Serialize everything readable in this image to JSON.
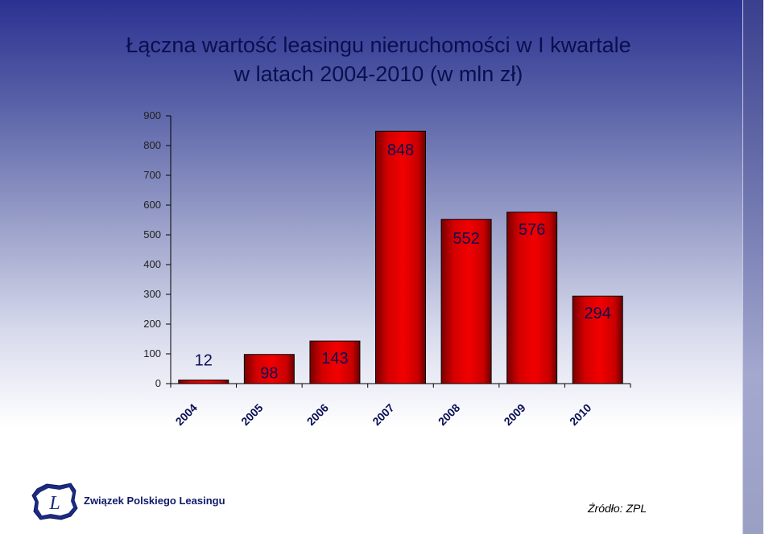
{
  "title_line1": "Łączna wartość leasingu nieruchomości w I kwartale",
  "title_line2": "w latach 2004-2010 (w mln zł)",
  "footer": {
    "organization": "Związek Polskiego Leasingu",
    "source": "Źródło: ZPL",
    "logo_letter": "L"
  },
  "colors": {
    "bar_fill": "#e00000",
    "bar_dark": "#6a0000",
    "title": "#0a0f4e"
  },
  "chart_data": {
    "type": "bar",
    "categories": [
      "2004",
      "2005",
      "2006",
      "2007",
      "2008",
      "2009",
      "2010"
    ],
    "values": [
      12,
      98,
      143,
      848,
      552,
      576,
      294
    ],
    "title": "Łączna wartość leasingu nieruchomości w I kwartale w latach 2004-2010 (w mln zł)",
    "xlabel": "",
    "ylabel": "",
    "ylim": [
      0,
      900
    ],
    "yticks": [
      0,
      100,
      200,
      300,
      400,
      500,
      600,
      700,
      800,
      900
    ],
    "grid": false,
    "legend": "none"
  }
}
